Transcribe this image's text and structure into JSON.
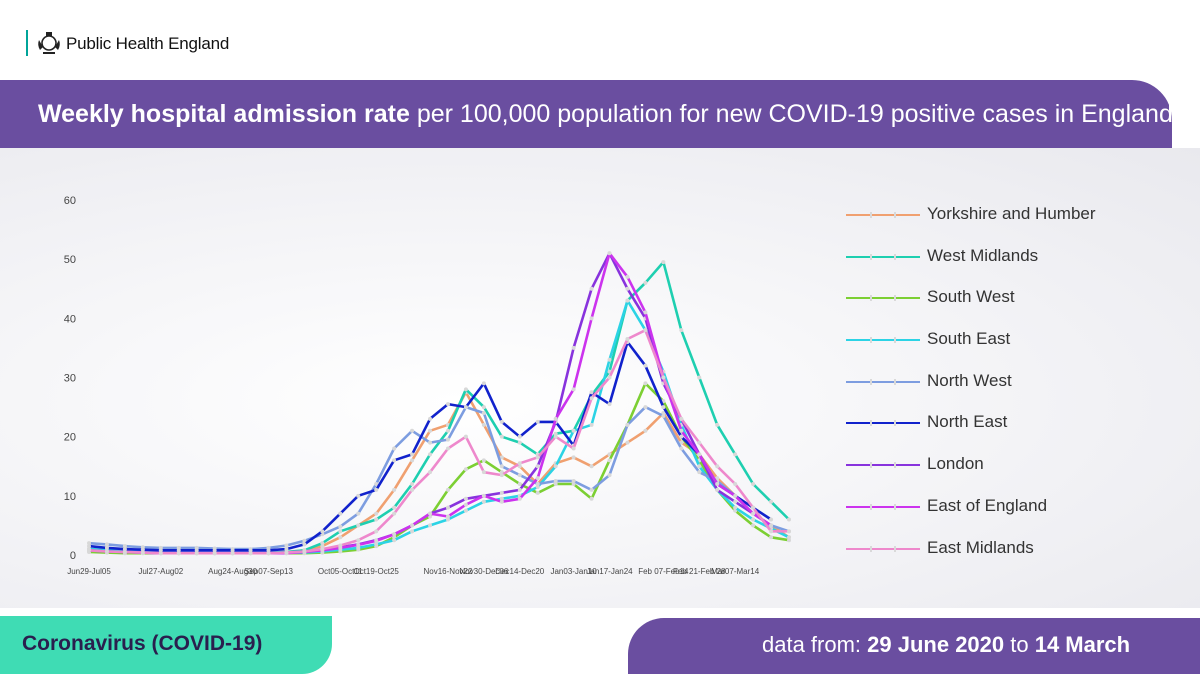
{
  "header": {
    "org_name": "Public Health England"
  },
  "title": {
    "bold": "Weekly hospital admission rate",
    "rest": " per 100,000 population for new COVID-19 positive cases in England"
  },
  "footer": {
    "left": "Coronavirus (COVID-19)",
    "right_prefix": "data from: ",
    "date_from": "29 June 2020",
    "right_mid": " to ",
    "date_to": "14 March"
  },
  "chart_data": {
    "type": "line",
    "x_tick_labels": [
      "Jun29-Jul05",
      "Jul27-Aug02",
      "Aug24-Aug30",
      "Sep07-Sep13",
      "Oct05-Oct11",
      "Oct19-Oct25",
      "Nov16-Nov22",
      "Nov30-Dec06",
      "Dec14-Dec20",
      "Jan03-Jan10",
      "Jan17-Jan24",
      "Feb 07-Feb14",
      "Feb 21-Feb 28",
      "Mar07-Mar14"
    ],
    "x_tick_index": [
      0,
      4,
      8,
      10,
      14,
      16,
      20,
      22,
      24,
      27,
      29,
      32,
      34,
      36
    ],
    "ylim": [
      0,
      60
    ],
    "yticks": [
      0,
      10,
      20,
      30,
      40,
      50,
      60
    ],
    "legend_position": "right",
    "series": [
      {
        "name": "Yorkshire and Humber",
        "color": "#f0a070",
        "values": [
          1,
          0.8,
          0.6,
          0.5,
          0.4,
          0.4,
          0.4,
          0.4,
          0.4,
          0.4,
          0.4,
          0.5,
          0.8,
          1.5,
          3,
          5,
          7,
          11,
          16,
          21,
          22,
          27.5,
          22,
          16.5,
          15,
          12,
          15.5,
          16.5,
          15,
          17,
          19,
          21,
          24,
          19,
          17,
          13,
          10,
          7,
          5,
          3
        ]
      },
      {
        "name": "West Midlands",
        "color": "#1ecfb0",
        "values": [
          1,
          0.8,
          0.6,
          0.5,
          0.4,
          0.4,
          0.4,
          0.4,
          0.4,
          0.4,
          0.4,
          0.5,
          0.8,
          2,
          4,
          5,
          6,
          8,
          12,
          17,
          21,
          28,
          25,
          20,
          19,
          17,
          20.5,
          21,
          27,
          31,
          43,
          46,
          49.5,
          38,
          30,
          22,
          17,
          12,
          9,
          6
        ]
      },
      {
        "name": "South West",
        "color": "#7ccf33",
        "values": [
          0.5,
          0.4,
          0.3,
          0.3,
          0.3,
          0.3,
          0.3,
          0.3,
          0.3,
          0.3,
          0.3,
          0.3,
          0.3,
          0.4,
          0.6,
          0.9,
          1.5,
          3,
          5,
          6.5,
          11,
          14.5,
          16,
          14,
          12,
          10.5,
          12,
          12,
          9.5,
          16,
          22,
          29,
          26,
          20,
          16,
          11,
          7.5,
          5,
          3,
          2.5
        ]
      },
      {
        "name": "South East",
        "color": "#2cd3e5",
        "values": [
          1,
          0.8,
          0.6,
          0.5,
          0.4,
          0.4,
          0.4,
          0.4,
          0.4,
          0.4,
          0.4,
          0.4,
          0.4,
          0.6,
          0.9,
          1.2,
          1.8,
          2.5,
          4,
          5,
          6,
          7.5,
          9,
          9.5,
          10,
          11.5,
          15,
          21,
          22,
          33,
          43,
          38,
          31,
          22,
          15,
          11,
          8,
          6,
          4.5,
          3
        ]
      },
      {
        "name": "North West",
        "color": "#7d9de0",
        "values": [
          2,
          1.8,
          1.5,
          1.3,
          1.2,
          1.2,
          1.2,
          1.1,
          1,
          1,
          1.2,
          1.6,
          2.4,
          3.5,
          4.8,
          7,
          12,
          18,
          21,
          19,
          19.5,
          25,
          24,
          15,
          13.5,
          12,
          12.5,
          12.5,
          11,
          13.5,
          22,
          25,
          23.5,
          18,
          14,
          12.5,
          10,
          7,
          5,
          4
        ]
      },
      {
        "name": "North East",
        "color": "#1122cc",
        "values": [
          1.5,
          1.2,
          1,
          0.9,
          0.8,
          0.8,
          0.8,
          0.8,
          0.8,
          0.8,
          0.8,
          1,
          1.8,
          4,
          7,
          10,
          11,
          16,
          17,
          23,
          25.5,
          25,
          29,
          22.5,
          20,
          22.5,
          22.5,
          18.5,
          27.5,
          25.5,
          36,
          32,
          25,
          20,
          17,
          12,
          10,
          8,
          6
        ]
      },
      {
        "name": "London",
        "color": "#8833dd",
        "values": [
          0.8,
          0.6,
          0.5,
          0.4,
          0.3,
          0.3,
          0.3,
          0.3,
          0.3,
          0.3,
          0.3,
          0.4,
          0.6,
          0.9,
          1.3,
          1.8,
          2.5,
          3.5,
          5,
          7,
          8,
          9.5,
          10,
          10.5,
          11,
          15,
          22.5,
          35,
          45,
          51,
          45,
          40,
          29,
          23,
          17,
          11,
          9,
          7,
          5
        ]
      },
      {
        "name": "East of England",
        "color": "#cc33ee",
        "values": [
          0.8,
          0.6,
          0.5,
          0.4,
          0.3,
          0.3,
          0.3,
          0.3,
          0.3,
          0.3,
          0.3,
          0.3,
          0.5,
          0.8,
          1.2,
          1.7,
          2.4,
          3.5,
          5,
          7,
          6.5,
          8.5,
          10,
          9,
          9.5,
          13,
          23,
          28,
          40,
          51,
          47,
          41,
          30,
          21,
          17,
          12,
          10,
          7,
          5
        ]
      },
      {
        "name": "East Midlands",
        "color": "#ee88cc",
        "values": [
          0.8,
          0.6,
          0.5,
          0.4,
          0.3,
          0.3,
          0.3,
          0.3,
          0.3,
          0.3,
          0.3,
          0.4,
          0.6,
          1,
          1.6,
          2.5,
          4,
          7,
          11,
          14,
          18,
          20,
          14,
          13.5,
          15.5,
          16.5,
          20,
          18,
          26.5,
          30,
          36.5,
          38,
          30,
          23,
          19,
          15,
          12,
          8,
          4,
          4
        ]
      }
    ]
  }
}
